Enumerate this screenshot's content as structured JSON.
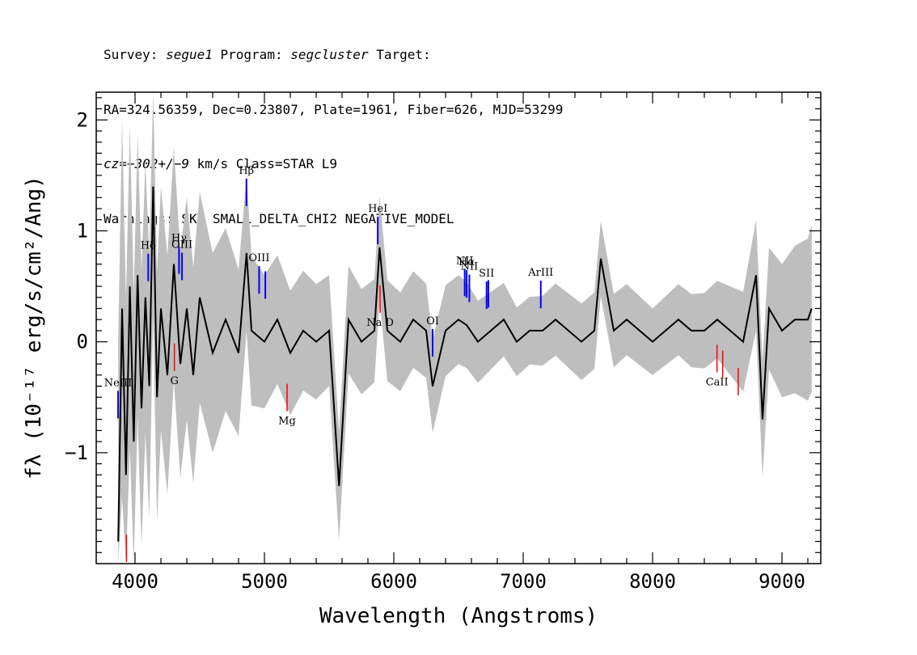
{
  "header": {
    "survey_label": "Survey:",
    "survey": "segue1",
    "program_label": "Program:",
    "program": "segcluster",
    "target_label": "Target:",
    "line2": "RA=324.56359, Dec=0.23807, Plate=1961, Fiber=626, MJD=53299",
    "cz_label": "cz=",
    "cz_value": "−302+/−9",
    "cz_rest": "km/s Class=STAR L9",
    "warnings": "Warnings: SKY SMALL_DELTA_CHI2 NEGATIVE_MODEL"
  },
  "chart_data": {
    "type": "line",
    "xlabel": "Wavelength (Angstroms)",
    "ylabel": "fλ (10⁻¹⁷ erg/s/cm²/Ang)",
    "xlim": [
      3700,
      9300
    ],
    "ylim": [
      -2.0,
      2.25
    ],
    "x_ticks": [
      4000,
      5000,
      6000,
      7000,
      8000,
      9000
    ],
    "y_ticks": [
      -1,
      0,
      1,
      2
    ],
    "grid": false,
    "legend": "none",
    "series": [
      {
        "role": "flux",
        "color": "#000000",
        "x": [
          3870,
          3900,
          3930,
          3960,
          3990,
          4020,
          4050,
          4080,
          4110,
          4140,
          4170,
          4200,
          4250,
          4300,
          4350,
          4400,
          4450,
          4500,
          4600,
          4700,
          4800,
          4862,
          4900,
          5000,
          5100,
          5200,
          5300,
          5400,
          5500,
          5577,
          5650,
          5750,
          5850,
          5890,
          5950,
          6050,
          6150,
          6250,
          6300,
          6400,
          6500,
          6563,
          6650,
          6750,
          6850,
          6950,
          7050,
          7150,
          7250,
          7350,
          7450,
          7550,
          7600,
          7700,
          7800,
          7900,
          8000,
          8100,
          8200,
          8300,
          8400,
          8500,
          8600,
          8700,
          8800,
          8850,
          8900,
          9000,
          9100,
          9200,
          9230
        ],
        "y": [
          -1.8,
          0.3,
          -1.2,
          0.5,
          -0.9,
          0.6,
          -0.6,
          0.4,
          -0.4,
          1.4,
          -0.5,
          0.3,
          -0.3,
          0.7,
          -0.2,
          0.3,
          -0.3,
          0.4,
          -0.1,
          0.2,
          -0.1,
          0.8,
          0.1,
          0.0,
          0.2,
          -0.1,
          0.1,
          0.0,
          0.1,
          -1.3,
          0.2,
          0.0,
          0.1,
          0.85,
          0.1,
          0.0,
          0.2,
          0.1,
          -0.4,
          0.1,
          0.2,
          0.15,
          0.0,
          0.1,
          0.2,
          0.0,
          0.1,
          0.1,
          0.2,
          0.1,
          0.0,
          0.1,
          0.75,
          0.1,
          0.2,
          0.1,
          0.0,
          0.1,
          0.2,
          0.1,
          0.1,
          0.2,
          0.1,
          0.0,
          0.6,
          -0.7,
          0.3,
          0.1,
          0.2,
          0.2,
          0.3
        ]
      },
      {
        "role": "noise",
        "color": "#bebebe",
        "x": [
          3850,
          4000,
          4200,
          4400,
          4600,
          4800,
          5000,
          5500,
          6000,
          6500,
          7000,
          7500,
          8000,
          8500,
          8800,
          9000,
          9230
        ],
        "err": [
          1.9,
          1.3,
          1.1,
          1.0,
          0.9,
          0.75,
          0.6,
          0.5,
          0.45,
          0.4,
          0.3,
          0.35,
          0.3,
          0.35,
          0.5,
          0.6,
          0.75
        ]
      }
    ],
    "emission_lines": [
      {
        "label": "NeIII",
        "x": 3869,
        "color": "#0000ff"
      },
      {
        "label": "Hδ",
        "x": 4102,
        "color": "#0000ff"
      },
      {
        "label": "Hγ",
        "x": 4340,
        "color": "#0000ff"
      },
      {
        "label": "OIII",
        "x": 4363,
        "color": "#0000ff"
      },
      {
        "label": "Hβ",
        "x": 4861,
        "color": "#0000ff"
      },
      {
        "label": "OIII",
        "x": 4959,
        "color": "#0000ff"
      },
      {
        "label": "",
        "x": 5007,
        "color": "#0000ff"
      },
      {
        "label": "HeI",
        "x": 5876,
        "color": "#0000ff"
      },
      {
        "label": "OI",
        "x": 6300,
        "color": "#0000ff"
      },
      {
        "label": "NII",
        "x": 6548,
        "color": "#0000ff"
      },
      {
        "label": "Hα",
        "x": 6563,
        "color": "#0000ff"
      },
      {
        "label": "NII",
        "x": 6584,
        "color": "#0000ff"
      },
      {
        "label": "SII",
        "x": 6717,
        "color": "#0000ff"
      },
      {
        "label": "",
        "x": 6731,
        "color": "#0000ff"
      },
      {
        "label": "ArIII",
        "x": 7136,
        "color": "#0000ff"
      }
    ],
    "absorption_lines": [
      {
        "label": "",
        "x": 3934,
        "color": "#ff0000"
      },
      {
        "label": "G",
        "x": 4304,
        "color": "#ff0000"
      },
      {
        "label": "Mg",
        "x": 5175,
        "color": "#ff0000"
      },
      {
        "label": "Na D",
        "x": 5894,
        "color": "#ff0000"
      },
      {
        "label": "CaII",
        "x": 8498,
        "color": "#ff0000"
      },
      {
        "label": "",
        "x": 8542,
        "color": "#ff0000"
      },
      {
        "label": "",
        "x": 8662,
        "color": "#ff0000"
      }
    ]
  }
}
